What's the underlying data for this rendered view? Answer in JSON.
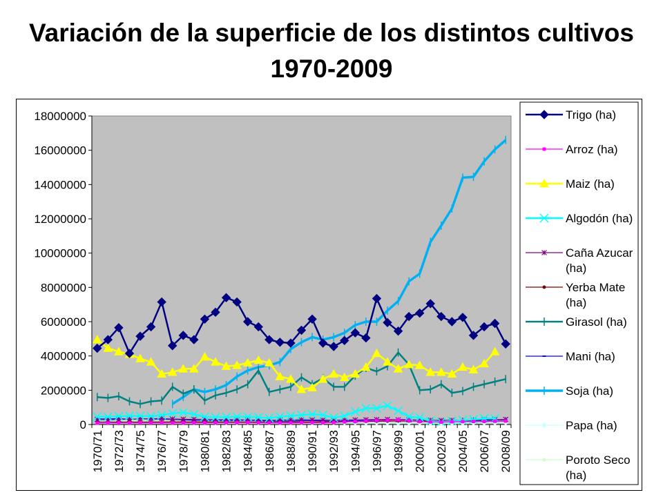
{
  "title": "Variación de la superficie de los distintos cultivos 1970-2009",
  "chart_data": {
    "type": "line",
    "title": "Variación de la superficie de los distintos cultivos 1970-2009",
    "xlabel": "",
    "ylabel": "",
    "ylim": [
      0,
      18000000
    ],
    "yticks": [
      "18000000",
      "16000000",
      "14000000",
      "12000000",
      "10000000",
      "8000000",
      "6000000",
      "4000000",
      "2000000",
      "0"
    ],
    "grid": false,
    "plot_background": "#c0c0c0",
    "legend_position": "right",
    "categories": [
      "1970/71",
      "1971/72",
      "1972/73",
      "1973/74",
      "1974/75",
      "1975/76",
      "1976/77",
      "1977/78",
      "1978/79",
      "1979/80",
      "1980/81",
      "1981/82",
      "1982/83",
      "1983/84",
      "1984/85",
      "1985/86",
      "1986/87",
      "1987/88",
      "1988/89",
      "1989/90",
      "1990/91",
      "1991/92",
      "1992/93",
      "1993/94",
      "1994/95",
      "1995/96",
      "1996/97",
      "1997/98",
      "1998/99",
      "1999/00",
      "2000/01",
      "2001/02",
      "2002/03",
      "2003/04",
      "2004/05",
      "2005/06",
      "2006/07",
      "2007/08",
      "2008/09"
    ],
    "x_tick_labels": [
      "1970/71",
      "1972/73",
      "1974/75",
      "1976/77",
      "1978/79",
      "1980/81",
      "1982/83",
      "1984/85",
      "1986/87",
      "1988/89",
      "1990/91",
      "1992/93",
      "1994/95",
      "1996/97",
      "1998/99",
      "2000/01",
      "2002/03",
      "2004/05",
      "2006/07",
      "2008/09"
    ],
    "series": [
      {
        "name": "Trigo (ha)",
        "color": "#000080",
        "marker": "diamond",
        "width": 2.5,
        "values": [
          4450000,
          4950000,
          5650000,
          4150000,
          5150000,
          5700000,
          7150000,
          4600000,
          5200000,
          4950000,
          6150000,
          6550000,
          7400000,
          7150000,
          6000000,
          5700000,
          4950000,
          4800000,
          4750000,
          5500000,
          6150000,
          4750000,
          4550000,
          4900000,
          5350000,
          5050000,
          7350000,
          5950000,
          5450000,
          6300000,
          6500000,
          7050000,
          6300000,
          6000000,
          6250000,
          5200000,
          5700000,
          5900000,
          4700000
        ]
      },
      {
        "name": "Arroz (ha)",
        "color": "#ff00ff",
        "marker": "square",
        "width": 1.2,
        "values": [
          80000,
          90000,
          100000,
          90000,
          100000,
          95000,
          100000,
          90000,
          95000,
          100000,
          95000,
          100000,
          110000,
          110000,
          110000,
          100000,
          95000,
          90000,
          95000,
          100000,
          110000,
          100000,
          110000,
          150000,
          170000,
          200000,
          230000,
          250000,
          280000,
          220000,
          170000,
          150000,
          140000,
          160000,
          170000,
          180000,
          180000,
          190000,
          200000
        ]
      },
      {
        "name": "Maiz (ha)",
        "color": "#ffff00",
        "marker": "triangle",
        "width": 2.5,
        "values": [
          4950000,
          4450000,
          4250000,
          4100000,
          3850000,
          3650000,
          2950000,
          3050000,
          3250000,
          3250000,
          3950000,
          3650000,
          3400000,
          3450000,
          3600000,
          3750000,
          3600000,
          2800000,
          2650000,
          2050000,
          2150000,
          2650000,
          2950000,
          2750000,
          2950000,
          3350000,
          4150000,
          3650000,
          3250000,
          3500000,
          3450000,
          3050000,
          3050000,
          2950000,
          3350000,
          3200000,
          3550000,
          4250000,
          null
        ]
      },
      {
        "name": "Algodón (ha)",
        "color": "#00ffff",
        "marker": "x",
        "width": 2.5,
        "values": [
          450000,
          450000,
          480000,
          500000,
          500000,
          480000,
          550000,
          650000,
          700000,
          600000,
          450000,
          420000,
          430000,
          450000,
          450000,
          420000,
          380000,
          450000,
          500000,
          550000,
          600000,
          550000,
          400000,
          500000,
          750000,
          950000,
          950000,
          1100000,
          800000,
          450000,
          400000,
          200000,
          150000,
          200000,
          250000,
          300000,
          350000,
          350000,
          null
        ]
      },
      {
        "name": "Caña Azucar (ha)",
        "color": "#800080",
        "marker": "star",
        "width": 1.2,
        "values": [
          300000,
          280000,
          300000,
          310000,
          330000,
          340000,
          350000,
          320000,
          310000,
          300000,
          310000,
          300000,
          290000,
          280000,
          270000,
          260000,
          250000,
          260000,
          270000,
          280000,
          270000,
          260000,
          250000,
          260000,
          270000,
          280000,
          290000,
          300000,
          280000,
          270000,
          260000,
          250000,
          240000,
          250000,
          260000,
          270000,
          280000,
          290000,
          300000
        ]
      },
      {
        "name": "Yerba Mate (ha)",
        "color": "#800000",
        "marker": "circle",
        "width": 1.2,
        "values": [
          150000,
          150000,
          150000,
          150000,
          150000,
          150000,
          150000,
          150000,
          150000,
          150000,
          150000,
          150000,
          150000,
          150000,
          150000,
          150000,
          150000,
          150000,
          150000,
          150000,
          150000,
          160000,
          160000,
          170000,
          170000,
          180000,
          190000,
          200000,
          210000,
          200000,
          200000,
          200000,
          200000,
          200000,
          200000,
          200000,
          200000,
          200000,
          200000
        ]
      },
      {
        "name": "Girasol (ha)",
        "color": "#008080",
        "marker": "plus",
        "width": 2.5,
        "values": [
          1600000,
          1550000,
          1650000,
          1350000,
          1200000,
          1350000,
          1400000,
          2200000,
          1800000,
          2050000,
          1400000,
          1700000,
          1850000,
          2050000,
          2350000,
          3150000,
          1900000,
          2050000,
          2200000,
          2750000,
          2350000,
          2700000,
          2200000,
          2200000,
          2850000,
          3300000,
          3100000,
          3400000,
          4200000,
          3500000,
          2000000,
          2050000,
          2350000,
          1850000,
          1950000,
          2200000,
          2350000,
          2500000,
          2650000
        ]
      },
      {
        "name": "Mani (ha)",
        "color": "#0000ff",
        "marker": "dash",
        "width": 1.2,
        "values": [
          330000,
          320000,
          350000,
          300000,
          340000,
          320000,
          310000,
          300000,
          280000,
          250000,
          230000,
          220000,
          230000,
          240000,
          250000,
          220000,
          200000,
          210000,
          200000,
          220000,
          230000,
          210000,
          190000,
          200000,
          220000,
          230000,
          250000,
          260000,
          300000,
          280000,
          250000,
          230000,
          220000,
          230000,
          240000,
          250000,
          260000,
          270000,
          280000
        ]
      },
      {
        "name": "Soja (ha)",
        "color": "#00b0f0",
        "marker": "plus",
        "width": 3.5,
        "values": [
          null,
          null,
          null,
          null,
          null,
          null,
          null,
          1200000,
          1600000,
          2050000,
          1900000,
          2050000,
          2300000,
          2800000,
          3150000,
          3350000,
          3450000,
          3650000,
          4400000,
          4800000,
          5100000,
          4950000,
          5100000,
          5350000,
          5800000,
          6000000,
          6000000,
          6650000,
          7200000,
          8350000,
          8800000,
          10650000,
          11600000,
          12600000,
          14400000,
          14450000,
          15350000,
          16050000,
          16600000
        ]
      },
      {
        "name": "Papa (ha)",
        "color": "#ccffff",
        "marker": "diamond",
        "width": 1.2,
        "values": [
          200000,
          190000,
          180000,
          170000,
          175000,
          160000,
          150000,
          150000,
          140000,
          130000,
          140000,
          130000,
          120000,
          120000,
          130000,
          120000,
          115000,
          110000,
          105000,
          110000,
          100000,
          110000,
          120000,
          115000,
          110000,
          100000,
          110000,
          100000,
          90000,
          100000,
          95000,
          90000,
          85000,
          80000,
          90000,
          95000,
          100000,
          105000,
          110000
        ]
      },
      {
        "name": "Poroto Seco (ha)",
        "color": "#ccffcc",
        "marker": "circle",
        "width": 1.2,
        "values": [
          200000,
          190000,
          210000,
          220000,
          230000,
          250000,
          260000,
          280000,
          290000,
          300000,
          310000,
          320000,
          300000,
          290000,
          280000,
          270000,
          260000,
          250000,
          240000,
          230000,
          250000,
          260000,
          250000,
          240000,
          230000,
          220000,
          210000,
          250000,
          300000,
          280000,
          260000,
          240000,
          220000,
          230000,
          250000,
          260000,
          270000,
          280000,
          290000
        ]
      }
    ]
  }
}
